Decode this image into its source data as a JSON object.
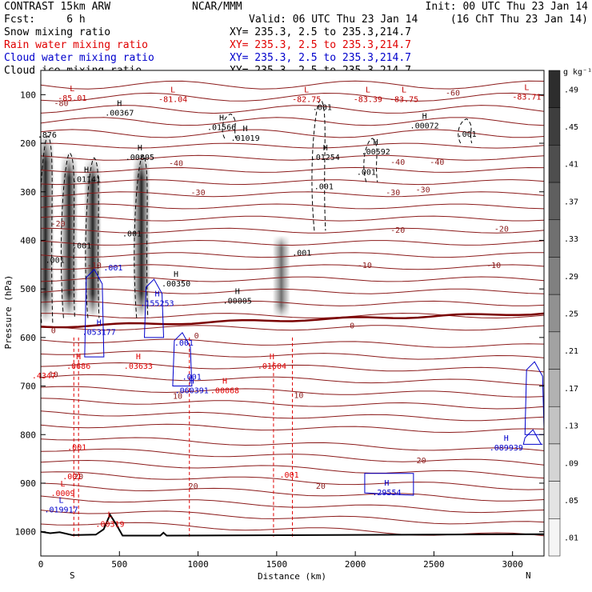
{
  "header": {
    "left1": "CONTRAST 15km ARW",
    "left2": "Fcst:     6 h",
    "center1": "NCAR/MMM",
    "valid": "Valid: 06 UTC Thu 23 Jan 14",
    "init": "Init: 00 UTC Thu 23 Jan 14",
    "local": "(16 ChT Thu 23 Jan 14)"
  },
  "fields": [
    {
      "label": "Snow mixing ratio",
      "xy": "XY= 235.3,  2.5 to 235.3,214.7",
      "color": "#000000"
    },
    {
      "label": "Rain water mixing ratio",
      "xy": "XY= 235.3,  2.5 to 235.3,214.7",
      "color": "#e00000"
    },
    {
      "label": "Cloud water mixing ratio",
      "xy": "XY= 235.3,  2.5 to 235.3,214.7",
      "color": "#0000cc"
    },
    {
      "label": "Cloud ice mixing ratio",
      "xy": "XY= 235.3,  2.5 to 235.3,214.7",
      "color": "#000000"
    }
  ],
  "chart_data": {
    "type": "heatmap",
    "title": "CONTRAST 15km ARW",
    "xlabel": "Distance (km)",
    "ylabel": "Pressure (hPa)",
    "xlim": [
      0,
      3200
    ],
    "ylim": [
      1050,
      50
    ],
    "x_ticks": [
      0,
      500,
      1000,
      1500,
      2000,
      2500,
      3000
    ],
    "y_ticks": [
      100,
      200,
      300,
      400,
      500,
      600,
      700,
      800,
      900,
      1000
    ],
    "x_endpoints": [
      "S",
      "N"
    ],
    "colorbar": {
      "unit": "g kg⁻¹",
      "levels": [
        ".01",
        ".05",
        ".09",
        ".13",
        ".17",
        ".21",
        ".25",
        ".29",
        ".33",
        ".37",
        ".41",
        ".45",
        ".49"
      ]
    },
    "snow_columns": [
      {
        "x": 30,
        "p_top": 180,
        "p_bot": 570,
        "max": 0.49
      },
      {
        "x": 180,
        "p_top": 220,
        "p_bot": 560,
        "max": 0.49
      },
      {
        "x": 330,
        "p_top": 230,
        "p_bot": 560,
        "max": 0.49
      },
      {
        "x": 640,
        "p_top": 220,
        "p_bot": 560,
        "max": 0.49
      },
      {
        "x": 1530,
        "p_top": 390,
        "p_bot": 560,
        "max": 0.33
      }
    ],
    "temperature_labels": [
      {
        "x": 130,
        "p": 117,
        "text": "-80"
      },
      {
        "x": 2620,
        "p": 95,
        "text": "-60"
      },
      {
        "x": 860,
        "p": 240,
        "text": "-40"
      },
      {
        "x": 2270,
        "p": 238,
        "text": "-40"
      },
      {
        "x": 2520,
        "p": 238,
        "text": "-40"
      },
      {
        "x": 1000,
        "p": 300,
        "text": "-30"
      },
      {
        "x": 2240,
        "p": 300,
        "text": "-30"
      },
      {
        "x": 2430,
        "p": 295,
        "text": "-30"
      },
      {
        "x": 110,
        "p": 365,
        "text": "-20"
      },
      {
        "x": 2270,
        "p": 378,
        "text": "-20"
      },
      {
        "x": 2930,
        "p": 375,
        "text": "-20"
      },
      {
        "x": 340,
        "p": 450,
        "text": "-10"
      },
      {
        "x": 2060,
        "p": 450,
        "text": "-10"
      },
      {
        "x": 2880,
        "p": 450,
        "text": "-10"
      },
      {
        "x": 80,
        "p": 585,
        "text": "0"
      },
      {
        "x": 990,
        "p": 595,
        "text": "0"
      },
      {
        "x": 1980,
        "p": 575,
        "text": "0"
      },
      {
        "x": 80,
        "p": 675,
        "text": "10"
      },
      {
        "x": 870,
        "p": 720,
        "text": "10"
      },
      {
        "x": 1640,
        "p": 718,
        "text": "10"
      },
      {
        "x": 240,
        "p": 885,
        "text": "20"
      },
      {
        "x": 970,
        "p": 905,
        "text": "20"
      },
      {
        "x": 1780,
        "p": 905,
        "text": "20"
      },
      {
        "x": 2420,
        "p": 852,
        "text": "20"
      }
    ],
    "extrema": [
      {
        "x": 200,
        "p": 98,
        "kind": "L",
        "value": "-85.01",
        "color": "#c00000"
      },
      {
        "x": 840,
        "p": 100,
        "kind": "L",
        "value": "-81.04",
        "color": "#c00000"
      },
      {
        "x": 1690,
        "p": 100,
        "kind": "L",
        "value": "-82.75",
        "color": "#c00000"
      },
      {
        "x": 2080,
        "p": 100,
        "kind": "L",
        "value": "-83.39",
        "color": "#c00000"
      },
      {
        "x": 2310,
        "p": 100,
        "kind": "L",
        "value": "-83.75",
        "color": "#c00000"
      },
      {
        "x": 3090,
        "p": 95,
        "kind": "L",
        "value": "-83.71",
        "color": "#c00000"
      },
      {
        "x": 500,
        "p": 128,
        "kind": "H",
        "value": ".00367",
        "color": "#000000"
      },
      {
        "x": 1150,
        "p": 158,
        "kind": "H",
        "value": ".01566",
        "color": "#000000"
      },
      {
        "x": 1300,
        "p": 180,
        "kind": "H",
        "value": ".01019",
        "color": "#000000"
      },
      {
        "x": 2440,
        "p": 155,
        "kind": "H",
        "value": ".00072",
        "color": "#000000"
      },
      {
        "x": 630,
        "p": 220,
        "kind": "H",
        "value": ".00805",
        "color": "#000000"
      },
      {
        "x": 1810,
        "p": 220,
        "kind": "H",
        "value": ".01254",
        "color": "#000000"
      },
      {
        "x": 2130,
        "p": 208,
        "kind": "H",
        "value": ".00592",
        "color": "#000000"
      },
      {
        "x": 290,
        "p": 265,
        "kind": "H",
        "value": ".01141",
        "color": "#000000"
      },
      {
        "x": 860,
        "p": 480,
        "kind": "H",
        "value": ".00350",
        "color": "#000000"
      },
      {
        "x": 1250,
        "p": 515,
        "kind": "H",
        "value": ".00005",
        "color": "#000000"
      },
      {
        "x": 740,
        "p": 520,
        "kind": "H",
        "value": ".155253",
        "color": "#0000cc"
      },
      {
        "x": 370,
        "p": 580,
        "kind": "H",
        "value": ".053177",
        "color": "#0000cc"
      },
      {
        "x": 240,
        "p": 650,
        "kind": "H",
        "value": ".0686",
        "color": "#e00000"
      },
      {
        "x": 620,
        "p": 650,
        "kind": "H",
        "value": ".03633",
        "color": "#e00000"
      },
      {
        "x": 1470,
        "p": 650,
        "kind": "H",
        "value": ".01604",
        "color": "#e00000"
      },
      {
        "x": 960,
        "p": 700,
        "kind": "H",
        "value": ".060391",
        "color": "#0000cc"
      },
      {
        "x": 1170,
        "p": 700,
        "kind": "H",
        "value": ".00068",
        "color": "#e00000"
      },
      {
        "x": 2960,
        "p": 818,
        "kind": "H",
        "value": ".089939",
        "color": "#0000cc"
      },
      {
        "x": 140,
        "p": 912,
        "kind": "L",
        "value": ".0009",
        "color": "#e00000"
      },
      {
        "x": 130,
        "p": 945,
        "kind": "L",
        "value": ".019917",
        "color": "#0000cc"
      },
      {
        "x": 440,
        "p": 975,
        "kind": "L",
        "value": ".00319",
        "color": "#e00000"
      },
      {
        "x": 2200,
        "p": 910,
        "kind": "H",
        "value": ".29554",
        "color": "#0000cc"
      }
    ],
    "contour_labels": [
      {
        "x": 40,
        "p": 182,
        "text": ".876",
        "color": "#000000"
      },
      {
        "x": 2710,
        "p": 180,
        "text": ".001",
        "color": "#000000"
      },
      {
        "x": 1790,
        "p": 125,
        "text": ".001",
        "color": "#000000"
      },
      {
        "x": 2070,
        "p": 258,
        "text": ".001",
        "color": "#000000"
      },
      {
        "x": 1800,
        "p": 288,
        "text": ".001",
        "color": "#000000"
      },
      {
        "x": 90,
        "p": 440,
        "text": ".001",
        "color": "#000000"
      },
      {
        "x": 260,
        "p": 410,
        "text": ".001",
        "color": "#000000"
      },
      {
        "x": 460,
        "p": 455,
        "text": ".001",
        "color": "#0000cc"
      },
      {
        "x": 580,
        "p": 385,
        "text": ".001",
        "color": "#000000"
      },
      {
        "x": 1660,
        "p": 425,
        "text": ".001",
        "color": "#000000"
      },
      {
        "x": 910,
        "p": 610,
        "text": ".001",
        "color": "#0000cc"
      },
      {
        "x": 960,
        "p": 680,
        "text": ".001",
        "color": "#0000cc"
      },
      {
        "x": 20,
        "p": 678,
        "text": ".4347",
        "color": "#e00000"
      },
      {
        "x": 230,
        "p": 825,
        "text": ".001",
        "color": "#e00000"
      },
      {
        "x": 200,
        "p": 885,
        "text": ".001",
        "color": "#e00000"
      },
      {
        "x": 1580,
        "p": 882,
        "text": ".001",
        "color": "#e00000"
      }
    ]
  }
}
